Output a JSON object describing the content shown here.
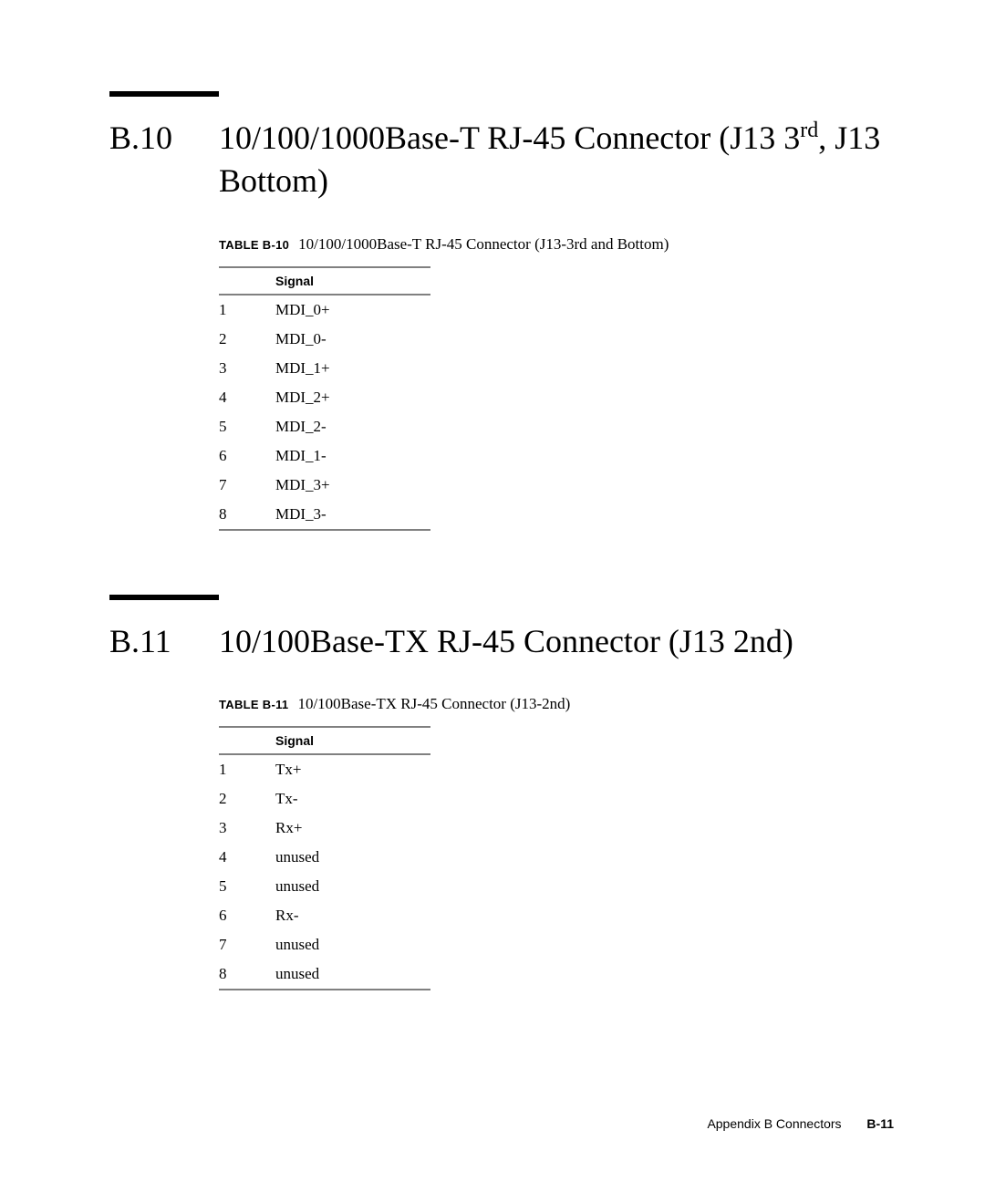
{
  "section1": {
    "number": "B.10",
    "title_prefix": "10/100/1000Base-T RJ-45 Connector (J13 3",
    "title_sup": "rd",
    "title_suffix": ", J13 Bottom)",
    "table": {
      "label": "TABLE B-10",
      "title": "10/100/1000Base-T RJ-45 Connector (J13-3rd and Bottom)",
      "header_signal": "Signal",
      "rows": [
        {
          "pin": "1",
          "signal": "MDI_0+"
        },
        {
          "pin": "2",
          "signal": "MDI_0-"
        },
        {
          "pin": "3",
          "signal": "MDI_1+"
        },
        {
          "pin": "4",
          "signal": "MDI_2+"
        },
        {
          "pin": "5",
          "signal": "MDI_2-"
        },
        {
          "pin": "6",
          "signal": "MDI_1-"
        },
        {
          "pin": "7",
          "signal": "MDI_3+"
        },
        {
          "pin": "8",
          "signal": "MDI_3-"
        }
      ]
    }
  },
  "section2": {
    "number": "B.11",
    "title": "10/100Base-TX RJ-45 Connector (J13 2nd)",
    "table": {
      "label": "TABLE B-11",
      "title": "10/100Base-TX RJ-45 Connector (J13-2nd)",
      "header_signal": "Signal",
      "rows": [
        {
          "pin": "1",
          "signal": "Tx+"
        },
        {
          "pin": "2",
          "signal": "Tx-"
        },
        {
          "pin": "3",
          "signal": "Rx+"
        },
        {
          "pin": "4",
          "signal": "unused"
        },
        {
          "pin": "5",
          "signal": "unused"
        },
        {
          "pin": "6",
          "signal": "Rx-"
        },
        {
          "pin": "7",
          "signal": "unused"
        },
        {
          "pin": "8",
          "signal": "unused"
        }
      ]
    }
  },
  "footer": {
    "appendix": "Appendix B    Connectors",
    "pagenum": "B-11"
  }
}
